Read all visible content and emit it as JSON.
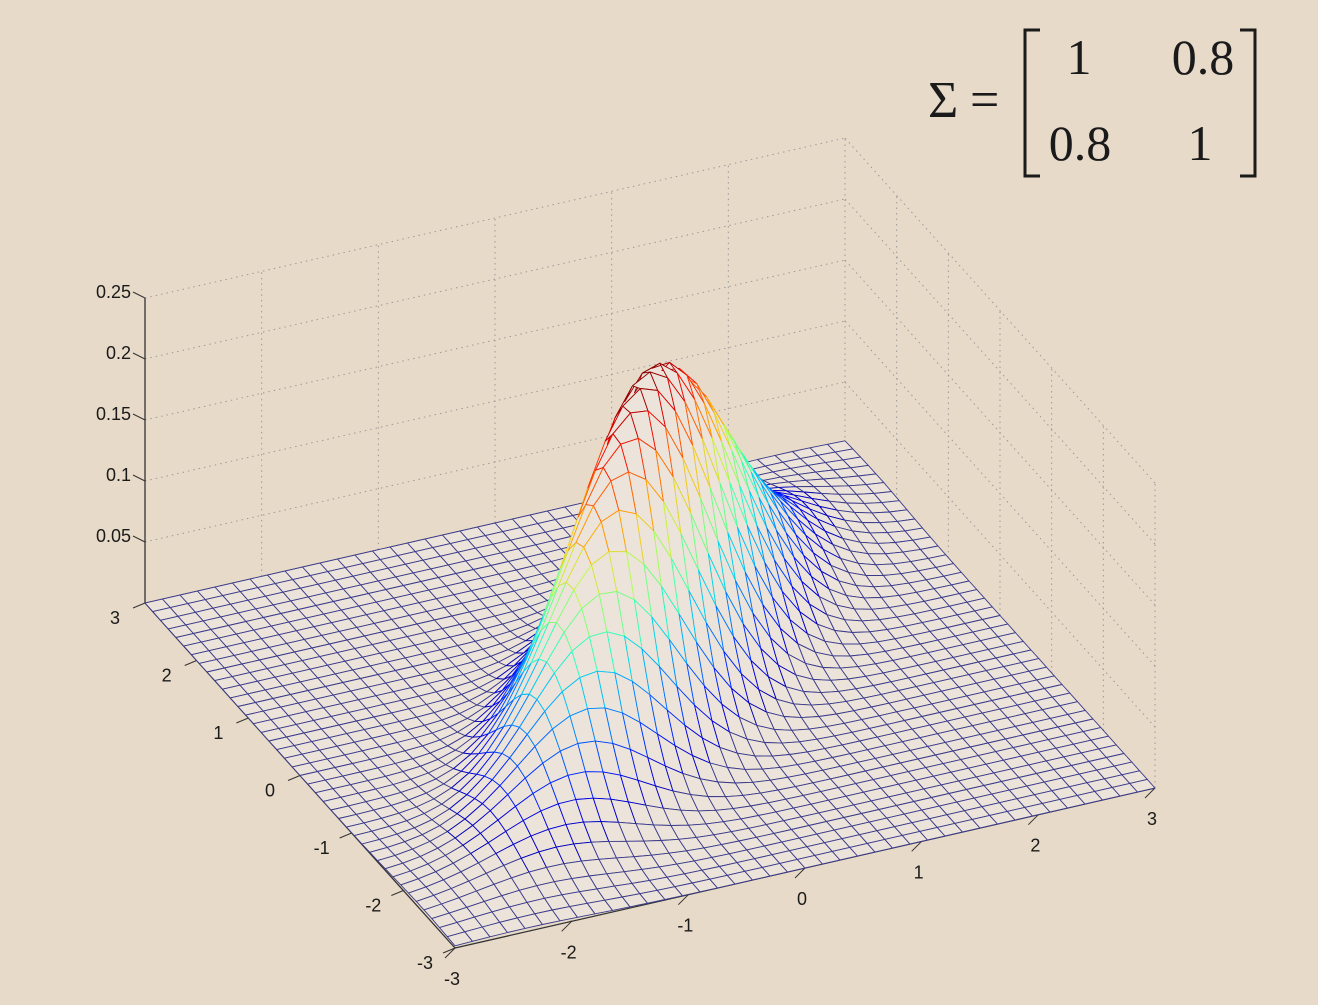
{
  "equation": {
    "lhs": "Σ",
    "equals": "=",
    "matrix": [
      [
        "1",
        "0.8"
      ],
      [
        "0.8",
        "1"
      ]
    ]
  },
  "chart_data": {
    "type": "surface-mesh",
    "title": "",
    "function": "bivariate normal pdf, mean [0, 0]",
    "covariance": [
      [
        1,
        0.8
      ],
      [
        0.8,
        1
      ]
    ],
    "x_range": [
      -3,
      3
    ],
    "y_range": [
      -3,
      3
    ],
    "z_range": [
      0,
      0.25
    ],
    "grid_step": 0.15,
    "x_ticks": [
      "-3",
      "-2",
      "-1",
      "0",
      "1",
      "2",
      "3"
    ],
    "y_ticks": [
      "-3",
      "-2",
      "-1",
      "0",
      "1",
      "2",
      "3"
    ],
    "z_ticks": [
      "0.05",
      "0.1",
      "0.15",
      "0.2",
      "0.25"
    ],
    "z_tick_values": [
      0.05,
      0.1,
      0.15,
      0.2,
      0.25
    ],
    "peak_value": 0.265,
    "colormap": "jet",
    "mesh_color": "#3b3b8a",
    "grid": true,
    "xlabel": "",
    "ylabel": "",
    "zlabel": ""
  }
}
